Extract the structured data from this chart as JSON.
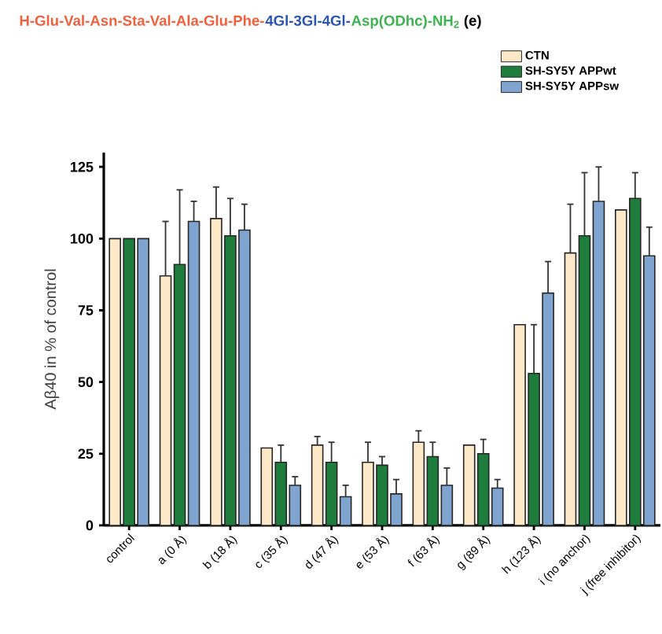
{
  "chart_data": {
    "type": "bar",
    "title": "H-Glu-Val-Asn-Sta-Val-Ala-Glu-Phe-",
    "annotations": [
      "4Gl-3Gl-4Gl-",
      "Asp(ODhc)-NH$_{2}$",
      "(e)"
    ],
    "ylabel": "Aβ40 in % of control",
    "categories": [
      "control",
      "a (0 Å)",
      "b (18 Å)",
      "c (35 Å)",
      "d (47 Å)",
      "e (53 Å)",
      "f (63 Å)",
      "g (89 Å)",
      "h (123 Å)",
      "i (no anchor)",
      "j (free inhibitor)"
    ],
    "series": [
      {
        "name": "CTN",
        "color": "#fde8c8",
        "values": [
          100,
          87,
          107,
          27,
          28,
          22,
          29,
          28,
          70,
          95,
          110
        ],
        "errors": [
          null,
          19,
          11,
          null,
          3,
          7,
          4,
          null,
          null,
          17,
          null
        ]
      },
      {
        "name": "SH-SY5Y APPwt",
        "color": "#1e7d3c",
        "values": [
          100,
          91,
          101,
          22,
          22,
          21,
          24,
          25,
          53,
          101,
          114
        ],
        "errors": [
          null,
          26,
          13,
          6,
          7,
          3,
          5,
          5,
          17,
          22,
          9
        ]
      },
      {
        "name": "SH-SY5Y APPsw",
        "color": "#80a4d0",
        "values": [
          100,
          106,
          103,
          14,
          10,
          11,
          14,
          13,
          81,
          113,
          94
        ],
        "errors": [
          null,
          7,
          9,
          3,
          4,
          5,
          6,
          3,
          11,
          12,
          10
        ]
      }
    ],
    "ylim": [
      0,
      130
    ],
    "yticks": [
      0,
      25,
      50,
      75,
      100,
      125
    ],
    "legend": "top right"
  }
}
